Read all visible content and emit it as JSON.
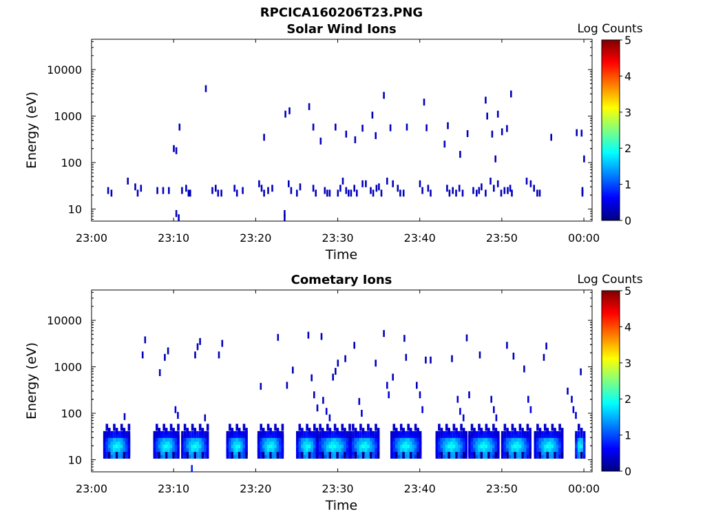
{
  "figure": {
    "title": "RPCICA160206T23.PNG"
  },
  "colors": {
    "dark_blue": "#000080",
    "colormap": [
      "#00007f",
      "#0000ff",
      "#007fff",
      "#00ffff",
      "#7fff7f",
      "#ffff00",
      "#ff7f00",
      "#ff0000",
      "#7f0000"
    ]
  },
  "chart_data": [
    {
      "type": "heatmap",
      "title": "Solar Wind Ions",
      "xlabel": "Time",
      "ylabel": "Energy (eV)",
      "y_scale": "log",
      "x_ticks": [
        "23:00",
        "23:10",
        "23:20",
        "23:30",
        "23:40",
        "23:50",
        "00:00"
      ],
      "x_tick_minutes": [
        0,
        10,
        20,
        30,
        40,
        50,
        60
      ],
      "xlim_minutes": [
        0,
        61
      ],
      "y_ticks": [
        "10",
        "100",
        "1000",
        "10000"
      ],
      "y_tick_values": [
        10,
        100,
        1000,
        10000
      ],
      "ylim": [
        5.5,
        45000
      ],
      "colorbar": {
        "label": "Log Counts",
        "min": 0,
        "max": 5,
        "ticks": [
          "0",
          "1",
          "2",
          "3",
          "4",
          "5"
        ]
      },
      "cells": [
        [
          2.0,
          25,
          0.3
        ],
        [
          2.4,
          22,
          0.3
        ],
        [
          4.4,
          40,
          0.3
        ],
        [
          5.3,
          30,
          0.3
        ],
        [
          5.6,
          22,
          0.3
        ],
        [
          6.0,
          28,
          0.3
        ],
        [
          8.0,
          25,
          0.3
        ],
        [
          8.7,
          25,
          0.3
        ],
        [
          9.4,
          25,
          0.3
        ],
        [
          10.3,
          8,
          0.3
        ],
        [
          10.6,
          6.5,
          0.3
        ],
        [
          11.0,
          25,
          0.3
        ],
        [
          11.5,
          28,
          0.3
        ],
        [
          11.8,
          22,
          0.3
        ],
        [
          12.0,
          22,
          0.3
        ],
        [
          14.7,
          25,
          0.3
        ],
        [
          15.1,
          28,
          0.3
        ],
        [
          15.4,
          22,
          0.3
        ],
        [
          15.8,
          22,
          0.3
        ],
        [
          17.4,
          28,
          0.3
        ],
        [
          17.7,
          22,
          0.3
        ],
        [
          18.4,
          25,
          0.3
        ],
        [
          20.4,
          35,
          0.3
        ],
        [
          20.7,
          28,
          0.3
        ],
        [
          21.0,
          22,
          0.3
        ],
        [
          21.5,
          25,
          0.3
        ],
        [
          22.0,
          28,
          0.3
        ],
        [
          23.5,
          8,
          0.3
        ],
        [
          23.5,
          6.5,
          0.3
        ],
        [
          24.0,
          35,
          0.3
        ],
        [
          24.3,
          25,
          0.3
        ],
        [
          25.0,
          22,
          0.3
        ],
        [
          25.4,
          30,
          0.3
        ],
        [
          27.0,
          28,
          0.3
        ],
        [
          27.3,
          22,
          0.3
        ],
        [
          28.4,
          25,
          0.3
        ],
        [
          28.7,
          22,
          0.3
        ],
        [
          29.0,
          22,
          0.3
        ],
        [
          30.0,
          22,
          0.3
        ],
        [
          30.3,
          28,
          0.3
        ],
        [
          30.6,
          40,
          0.3
        ],
        [
          31.0,
          25,
          0.3
        ],
        [
          31.3,
          22,
          0.3
        ],
        [
          31.6,
          22,
          0.3
        ],
        [
          32.0,
          28,
          0.3
        ],
        [
          32.3,
          22,
          0.3
        ],
        [
          33.0,
          35,
          0.3
        ],
        [
          33.4,
          35,
          0.3
        ],
        [
          34.0,
          25,
          0.3
        ],
        [
          34.3,
          22,
          0.3
        ],
        [
          34.7,
          28,
          0.3
        ],
        [
          35.0,
          30,
          0.3
        ],
        [
          35.3,
          22,
          0.3
        ],
        [
          36.0,
          40,
          0.3
        ],
        [
          36.7,
          35,
          0.3
        ],
        [
          37.3,
          28,
          0.3
        ],
        [
          37.6,
          22,
          0.3
        ],
        [
          38.0,
          22,
          0.3
        ],
        [
          40.0,
          35,
          0.3
        ],
        [
          40.3,
          25,
          0.3
        ],
        [
          41.0,
          28,
          0.3
        ],
        [
          41.3,
          22,
          0.3
        ],
        [
          43.3,
          28,
          0.3
        ],
        [
          43.6,
          22,
          0.3
        ],
        [
          44.0,
          25,
          0.3
        ],
        [
          44.4,
          22,
          0.3
        ],
        [
          44.8,
          28,
          0.3
        ],
        [
          45.2,
          22,
          0.3
        ],
        [
          46.5,
          25,
          0.3
        ],
        [
          46.9,
          22,
          0.3
        ],
        [
          47.2,
          25,
          0.3
        ],
        [
          47.5,
          30,
          0.3
        ],
        [
          48.0,
          22,
          0.3
        ],
        [
          48.6,
          40,
          0.3
        ],
        [
          49.0,
          28,
          0.3
        ],
        [
          49.5,
          35,
          0.3
        ],
        [
          49.9,
          22,
          0.3
        ],
        [
          50.3,
          25,
          0.3
        ],
        [
          50.7,
          25,
          0.3
        ],
        [
          51.0,
          28,
          0.3
        ],
        [
          51.2,
          22,
          0.3
        ],
        [
          53.0,
          40,
          0.3
        ],
        [
          53.5,
          35,
          0.3
        ],
        [
          53.9,
          28,
          0.3
        ],
        [
          54.3,
          22,
          0.3
        ],
        [
          54.6,
          22,
          0.3
        ],
        [
          59.8,
          22,
          0.3
        ],
        [
          59.8,
          25,
          0.3
        ],
        [
          10.0,
          200,
          0.3
        ],
        [
          10.3,
          180,
          0.3
        ],
        [
          10.7,
          580,
          0.3
        ],
        [
          13.9,
          3900,
          0.3
        ],
        [
          21.0,
          350,
          0.3
        ],
        [
          23.6,
          1100,
          0.3
        ],
        [
          24.1,
          1300,
          0.3
        ],
        [
          26.5,
          1600,
          0.3
        ],
        [
          27.0,
          580,
          0.3
        ],
        [
          27.9,
          290,
          0.3
        ],
        [
          29.7,
          580,
          0.3
        ],
        [
          31.0,
          410,
          0.3
        ],
        [
          32.1,
          310,
          0.3
        ],
        [
          33.0,
          550,
          0.3
        ],
        [
          34.2,
          1050,
          0.3
        ],
        [
          34.6,
          380,
          0.3
        ],
        [
          35.6,
          2800,
          0.3
        ],
        [
          36.4,
          560,
          0.3
        ],
        [
          38.4,
          580,
          0.3
        ],
        [
          40.5,
          2000,
          0.3
        ],
        [
          40.8,
          560,
          0.3
        ],
        [
          43.0,
          250,
          0.3
        ],
        [
          43.4,
          620,
          0.3
        ],
        [
          44.9,
          150,
          0.3
        ],
        [
          45.8,
          420,
          0.3
        ],
        [
          48.0,
          2200,
          0.3
        ],
        [
          48.2,
          1000,
          0.3
        ],
        [
          48.8,
          410,
          0.3
        ],
        [
          49.2,
          120,
          0.3
        ],
        [
          49.5,
          1100,
          0.3
        ],
        [
          50.0,
          460,
          0.3
        ],
        [
          50.6,
          540,
          0.3
        ],
        [
          51.1,
          3000,
          0.3
        ],
        [
          56.0,
          350,
          0.3
        ],
        [
          59.1,
          440,
          0.3
        ],
        [
          59.7,
          430,
          0.3
        ],
        [
          60.0,
          120,
          0.3
        ]
      ]
    },
    {
      "type": "heatmap",
      "title": "Cometary Ions",
      "xlabel": "Time",
      "ylabel": "Energy (eV)",
      "y_scale": "log",
      "x_ticks": [
        "23:00",
        "23:10",
        "23:20",
        "23:30",
        "23:40",
        "23:50",
        "00:00"
      ],
      "x_tick_minutes": [
        0,
        10,
        20,
        30,
        40,
        50,
        60
      ],
      "xlim_minutes": [
        0,
        61
      ],
      "y_ticks": [
        "10",
        "100",
        "1000",
        "10000"
      ],
      "y_tick_values": [
        10,
        100,
        1000,
        10000
      ],
      "ylim": [
        5.5,
        45000
      ],
      "colorbar": {
        "label": "Log Counts",
        "min": 0,
        "max": 5,
        "ticks": [
          "0",
          "1",
          "2",
          "3",
          "4",
          "5"
        ]
      },
      "bursts": [
        {
          "start": 1.5,
          "width": 3.3
        },
        {
          "start": 7.6,
          "width": 3.2
        },
        {
          "start": 11.0,
          "width": 3.4
        },
        {
          "start": 16.5,
          "width": 2.6
        },
        {
          "start": 20.3,
          "width": 3.2
        },
        {
          "start": 25.0,
          "width": 2.7
        },
        {
          "start": 27.5,
          "width": 4.2
        },
        {
          "start": 31.5,
          "width": 3.7
        },
        {
          "start": 36.5,
          "width": 3.8
        },
        {
          "start": 42.0,
          "width": 3.9
        },
        {
          "start": 46.0,
          "width": 3.8
        },
        {
          "start": 50.0,
          "width": 3.7
        },
        {
          "start": 54.0,
          "width": 3.6
        },
        {
          "start": 59.0,
          "width": 1.3
        }
      ],
      "cells": [
        [
          4.0,
          85,
          0.3
        ],
        [
          6.2,
          1800,
          0.3
        ],
        [
          6.5,
          3800,
          0.3
        ],
        [
          8.3,
          750,
          0.3
        ],
        [
          8.9,
          1600,
          0.3
        ],
        [
          9.3,
          2200,
          0.3
        ],
        [
          10.2,
          120,
          0.5
        ],
        [
          10.5,
          90,
          0.4
        ],
        [
          12.6,
          1800,
          0.3
        ],
        [
          12.9,
          2700,
          0.3
        ],
        [
          13.2,
          3500,
          0.3
        ],
        [
          13.8,
          80,
          0.3
        ],
        [
          15.5,
          1800,
          0.3
        ],
        [
          15.9,
          3200,
          0.3
        ],
        [
          20.6,
          380,
          0.3
        ],
        [
          22.7,
          4300,
          0.3
        ],
        [
          23.8,
          400,
          0.3
        ],
        [
          24.5,
          850,
          0.3
        ],
        [
          26.4,
          4800,
          0.3
        ],
        [
          26.8,
          580,
          0.3
        ],
        [
          27.1,
          250,
          0.3
        ],
        [
          27.5,
          130,
          0.3
        ],
        [
          28.0,
          4500,
          0.3
        ],
        [
          28.2,
          190,
          0.4
        ],
        [
          28.6,
          110,
          0.5
        ],
        [
          29.0,
          80,
          0.4
        ],
        [
          29.4,
          600,
          0.3
        ],
        [
          29.7,
          800,
          0.3
        ],
        [
          30.0,
          1200,
          0.3
        ],
        [
          30.9,
          1500,
          0.3
        ],
        [
          32.0,
          2900,
          0.3
        ],
        [
          32.6,
          180,
          0.4
        ],
        [
          32.9,
          100,
          0.5
        ],
        [
          34.6,
          1200,
          0.3
        ],
        [
          35.6,
          5200,
          0.3
        ],
        [
          36.0,
          400,
          0.4
        ],
        [
          36.2,
          250,
          0.5
        ],
        [
          36.7,
          600,
          0.3
        ],
        [
          38.1,
          4100,
          0.3
        ],
        [
          38.3,
          1600,
          0.3
        ],
        [
          39.6,
          400,
          0.3
        ],
        [
          40.0,
          250,
          0.4
        ],
        [
          40.3,
          120,
          0.5
        ],
        [
          40.7,
          1400,
          0.3
        ],
        [
          41.3,
          1400,
          0.3
        ],
        [
          43.9,
          1500,
          0.3
        ],
        [
          44.6,
          200,
          0.4
        ],
        [
          44.9,
          110,
          0.5
        ],
        [
          45.3,
          80,
          0.4
        ],
        [
          45.7,
          4200,
          0.3
        ],
        [
          46.0,
          250,
          0.3
        ],
        [
          47.3,
          1800,
          0.3
        ],
        [
          48.7,
          200,
          0.4
        ],
        [
          49.0,
          120,
          0.4
        ],
        [
          49.3,
          80,
          0.4
        ],
        [
          50.6,
          2900,
          0.3
        ],
        [
          51.4,
          1700,
          0.3
        ],
        [
          52.7,
          900,
          0.3
        ],
        [
          53.2,
          200,
          0.4
        ],
        [
          53.5,
          120,
          0.5
        ],
        [
          55.1,
          1600,
          0.3
        ],
        [
          55.4,
          2800,
          0.3
        ],
        [
          58.0,
          300,
          0.3
        ],
        [
          58.5,
          200,
          0.4
        ],
        [
          58.7,
          120,
          0.5
        ],
        [
          59.0,
          90,
          0.5
        ],
        [
          59.6,
          780,
          0.3
        ],
        [
          12.2,
          6.5,
          0.8
        ]
      ]
    }
  ]
}
